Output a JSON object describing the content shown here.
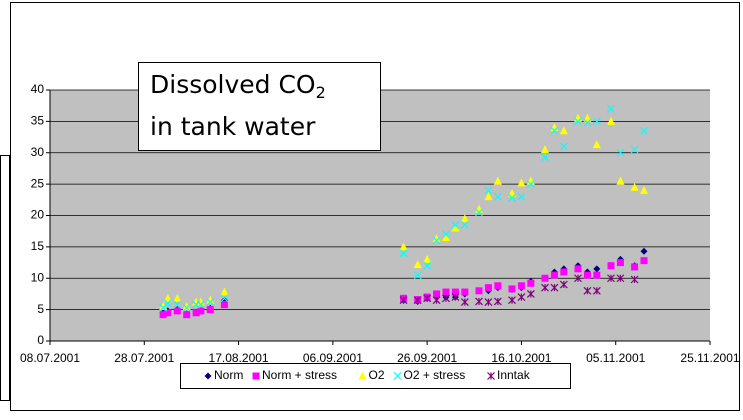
{
  "chart_data": {
    "type": "scatter",
    "title": {
      "line1": "Dissolved CO",
      "subscript": "2",
      "line2": "in tank water"
    },
    "x": [
      "2001-08-01",
      "2001-08-02",
      "2001-08-04",
      "2001-08-06",
      "2001-08-08",
      "2001-08-09",
      "2001-08-11",
      "2001-08-14",
      "2001-09-21",
      "2001-09-24",
      "2001-09-26",
      "2001-09-28",
      "2001-09-30",
      "2001-10-02",
      "2001-10-04",
      "2001-10-07",
      "2001-10-09",
      "2001-10-11",
      "2001-10-14",
      "2001-10-16",
      "2001-10-18",
      "2001-10-21",
      "2001-10-23",
      "2001-10-25",
      "2001-10-28",
      "2001-10-30",
      "2001-11-01",
      "2001-11-04",
      "2001-11-06",
      "2001-11-09",
      "2001-11-11"
    ],
    "series": [
      {
        "name": "Norm",
        "color": "#000080",
        "marker": "diamond",
        "values": [
          4.5,
          4.8,
          5,
          4.3,
          4.6,
          4.8,
          5.2,
          6.5,
          6.5,
          6.3,
          6.8,
          7,
          7,
          7,
          7.5,
          8,
          8,
          8.5,
          8.2,
          8.5,
          9.5,
          10,
          11,
          11.5,
          12,
          11,
          11.5,
          12,
          13,
          12,
          14.3
        ]
      },
      {
        "name": "Norm + stress",
        "color": "#ff00ff",
        "marker": "square",
        "values": [
          4.2,
          4.5,
          4.8,
          4.2,
          4.5,
          4.8,
          5,
          5.8,
          6.8,
          6.6,
          7,
          7.5,
          7.8,
          7.8,
          7.8,
          8,
          8.5,
          8.8,
          8.3,
          8.8,
          9.2,
          10,
          10.5,
          11,
          11.5,
          10.5,
          10.5,
          12,
          12.5,
          11.8,
          12.8
        ]
      },
      {
        "name": "O2",
        "color": "#ffff00",
        "marker": "triangle",
        "values": [
          5.5,
          6.8,
          6.8,
          5.5,
          6.2,
          6.2,
          6.5,
          7.8,
          15,
          12.2,
          13,
          16.3,
          16.5,
          18,
          19.5,
          21,
          23,
          25.5,
          23.5,
          25.2,
          25.5,
          30.5,
          34,
          33.5,
          35.5,
          35.5,
          31.3,
          35,
          25.5,
          24.5,
          24
        ]
      },
      {
        "name": "O2 + stress",
        "color": "#00ffff",
        "marker": "x",
        "values": [
          5.3,
          6,
          5.8,
          5.3,
          5.8,
          5.8,
          6.2,
          6.8,
          14,
          10.5,
          12,
          16,
          17,
          18.5,
          18.5,
          20.5,
          24,
          23,
          22.8,
          23,
          25,
          29.3,
          33.5,
          31,
          35,
          34.8,
          35,
          37,
          30,
          30.5,
          33.5
        ]
      },
      {
        "name": "Inntak",
        "color": "#800080",
        "marker": "star",
        "values": [
          null,
          null,
          null,
          null,
          null,
          null,
          null,
          null,
          6.5,
          6.5,
          6.8,
          6.5,
          6.8,
          7,
          6.2,
          6.3,
          6.2,
          6.3,
          6.5,
          7,
          7.5,
          8.5,
          8.5,
          9,
          10,
          8,
          8,
          10,
          10,
          9.8,
          null
        ]
      }
    ],
    "xlim": [
      "2001-07-08",
      "2001-11-25"
    ],
    "xticks": [
      {
        "value": "2001-07-08",
        "label": "08.07.2001"
      },
      {
        "value": "2001-07-28",
        "label": "28.07.2001"
      },
      {
        "value": "2001-08-17",
        "label": "17.08.2001"
      },
      {
        "value": "2001-09-06",
        "label": "06.09.2001"
      },
      {
        "value": "2001-09-26",
        "label": "26.09.2001"
      },
      {
        "value": "2001-10-16",
        "label": "16.10.2001"
      },
      {
        "value": "2001-11-05",
        "label": "05.11.2001"
      },
      {
        "value": "2001-11-25",
        "label": "25.11.2001"
      }
    ],
    "ylim": [
      0,
      40
    ],
    "yticks": [
      0,
      5,
      10,
      15,
      20,
      25,
      30,
      35,
      40
    ],
    "grid": true,
    "legend": "bottom"
  }
}
